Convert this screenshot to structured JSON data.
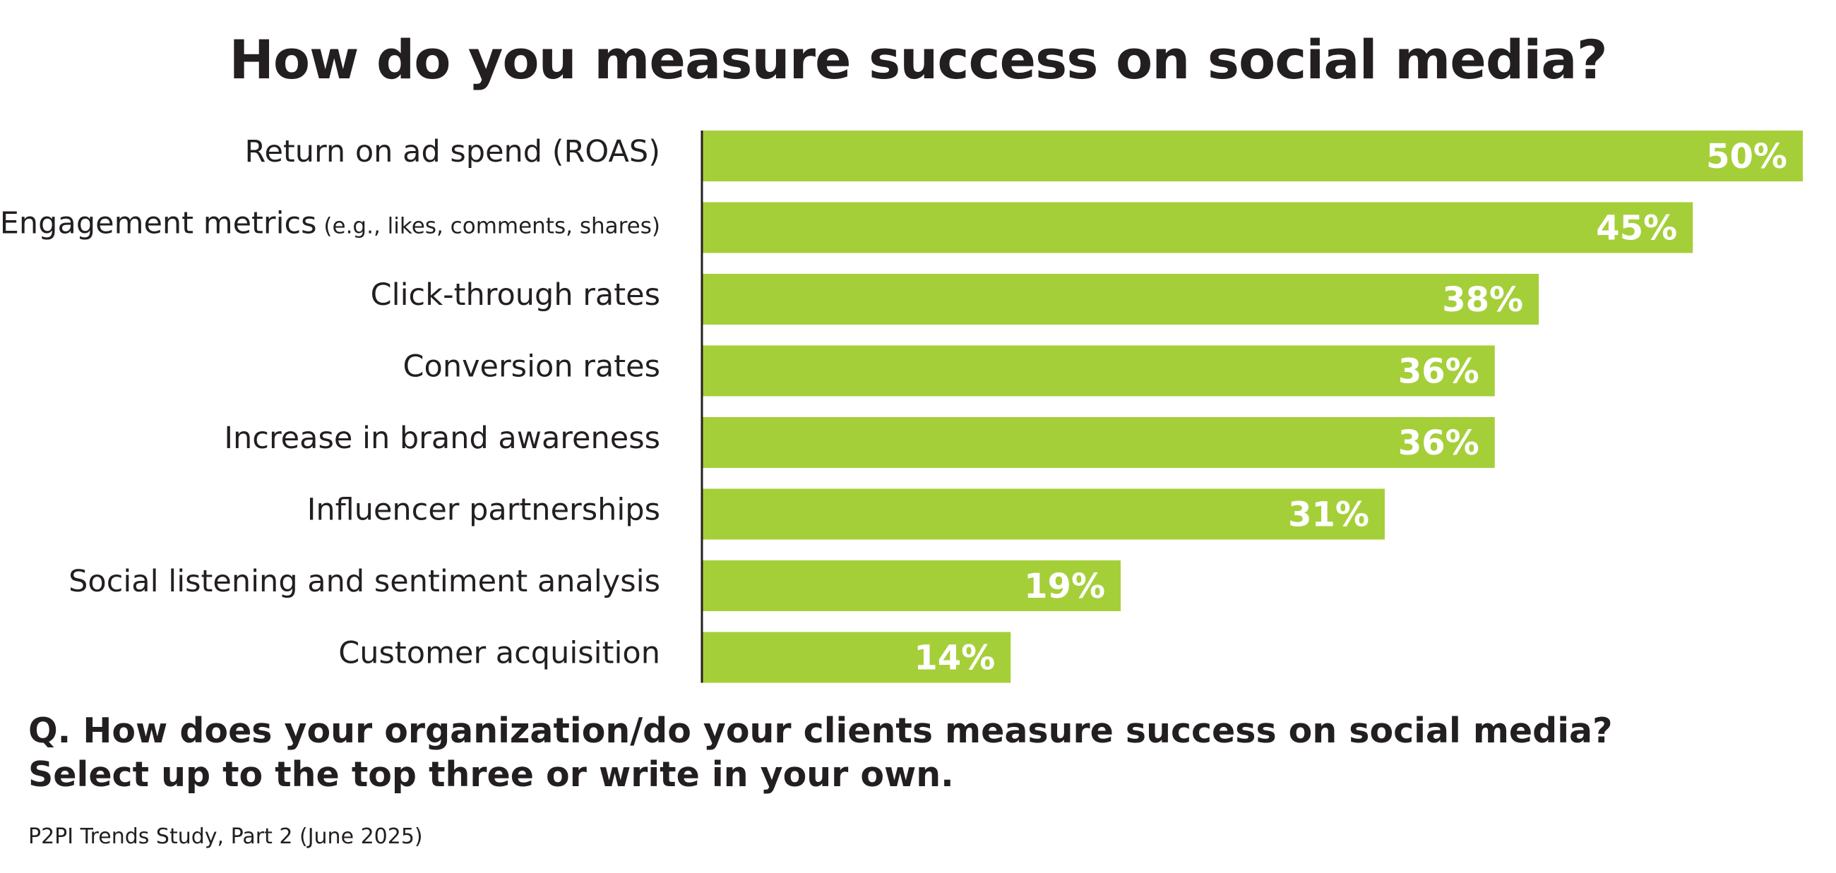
{
  "chart_data": {
    "type": "bar",
    "orientation": "horizontal",
    "title": "How do you measure success on social media?",
    "categories": [
      {
        "label": "Return on ad spend (ROAS)",
        "sub": ""
      },
      {
        "label": "Engagement metrics",
        "sub": "(e.g., likes, comments, shares)"
      },
      {
        "label": "Click-through rates",
        "sub": ""
      },
      {
        "label": "Conversion rates",
        "sub": ""
      },
      {
        "label": "Increase in brand awareness",
        "sub": ""
      },
      {
        "label": "Influencer partnerships",
        "sub": ""
      },
      {
        "label": "Social listening and sentiment analysis",
        "sub": ""
      },
      {
        "label": "Customer acquisition",
        "sub": ""
      }
    ],
    "values": [
      50,
      45,
      38,
      36,
      36,
      31,
      19,
      14
    ],
    "value_labels": [
      "50%",
      "45%",
      "38%",
      "36%",
      "36%",
      "31%",
      "19%",
      "14%"
    ],
    "unit": "%",
    "xlim": [
      0,
      50
    ],
    "grid": false,
    "legend": "none",
    "colors": {
      "bar": "#a5cf39",
      "axis": "#231f20",
      "value_text": "#ffffff"
    }
  },
  "question": {
    "line1": "Q. How does your organization/do your clients measure success on social media?",
    "line2": "Select up to the top three or write in your own."
  },
  "source": "P2PI Trends Study, Part 2 (June 2025)"
}
